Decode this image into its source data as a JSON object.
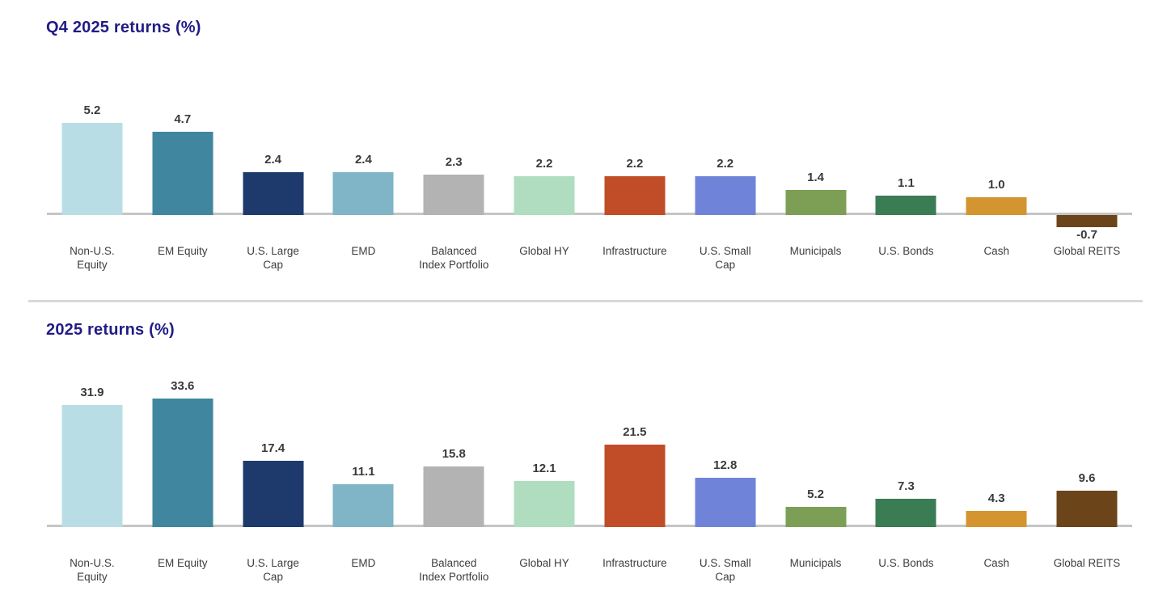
{
  "styles": {
    "background": "#ffffff",
    "title_color": "#211c85",
    "axis_color": "#c5c5c5",
    "divider_color": "#d9d9d9",
    "value_label_color": "#3a3a3a",
    "category_label_color": "#3d3d3d"
  },
  "chart_data": [
    {
      "type": "bar",
      "title": "Q4 2025 returns (%)",
      "categories": [
        "Non-U.S.\nEquity",
        "EM Equity",
        "U.S. Large\nCap",
        "EMD",
        "Balanced\nIndex Portfolio",
        "Global HY",
        "Infrastructure",
        "U.S. Small\nCap",
        "Municipals",
        "U.S. Bonds",
        "Cash",
        "Global REITS"
      ],
      "values": [
        5.2,
        4.7,
        2.4,
        2.4,
        2.3,
        2.2,
        2.2,
        2.2,
        1.4,
        1.1,
        1.0,
        -0.7
      ],
      "colors": [
        "#b9dde4",
        "#40869f",
        "#1e3a6d",
        "#7fb5c6",
        "#b3b3b4",
        "#b0ddc0",
        "#c04d27",
        "#6f84d8",
        "#7c9f55",
        "#3a7c53",
        "#d4942f",
        "#6c4419"
      ],
      "xlabel": "",
      "ylabel": "",
      "ylim": [
        -1,
        5.5
      ],
      "grid": false,
      "legend": "none",
      "value_labels": true,
      "value_label_format": "one_decimal"
    },
    {
      "type": "bar",
      "title": "2025 returns (%)",
      "categories": [
        "Non-U.S.\nEquity",
        "EM Equity",
        "U.S. Large\nCap",
        "EMD",
        "Balanced\nIndex Portfolio",
        "Global HY",
        "Infrastructure",
        "U.S. Small\nCap",
        "Municipals",
        "U.S. Bonds",
        "Cash",
        "Global REITS"
      ],
      "values": [
        31.9,
        33.6,
        17.4,
        11.1,
        15.8,
        12.1,
        21.5,
        12.8,
        5.2,
        7.3,
        4.3,
        9.6
      ],
      "colors": [
        "#b9dde4",
        "#40869f",
        "#1e3a6d",
        "#7fb5c6",
        "#b3b3b4",
        "#b0ddc0",
        "#c04d27",
        "#6f84d8",
        "#7c9f55",
        "#3a7c53",
        "#d4942f",
        "#6c4419"
      ],
      "xlabel": "",
      "ylabel": "",
      "ylim": [
        0,
        36
      ],
      "grid": false,
      "legend": "none",
      "value_labels": true,
      "value_label_format": "one_decimal"
    }
  ]
}
